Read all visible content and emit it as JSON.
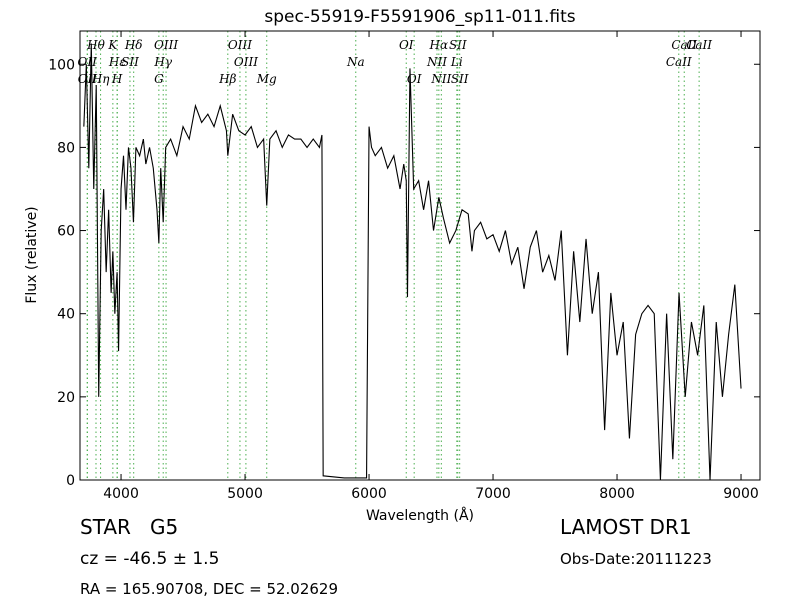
{
  "chart_data": {
    "type": "line",
    "title": "spec-55919-F5591906_sp11-011.fits",
    "xlabel": "Wavelength (Å)",
    "ylabel": "Flux (relative)",
    "xlim": [
      3669,
      9153
    ],
    "ylim": [
      0,
      108
    ],
    "xticks": [
      4000,
      5000,
      6000,
      7000,
      8000,
      9000
    ],
    "yticks": [
      0,
      20,
      40,
      60,
      80,
      100
    ],
    "color": "#000000",
    "line_color": "#4caf50",
    "x": [
      3700,
      3720,
      3740,
      3760,
      3780,
      3800,
      3820,
      3840,
      3860,
      3880,
      3900,
      3920,
      3934,
      3950,
      3968,
      3980,
      4000,
      4020,
      4040,
      4060,
      4080,
      4100,
      4120,
      4150,
      4180,
      4200,
      4230,
      4260,
      4290,
      4305,
      4320,
      4340,
      4360,
      4400,
      4450,
      4500,
      4550,
      4600,
      4650,
      4700,
      4750,
      4800,
      4850,
      4861,
      4900,
      4950,
      5000,
      5050,
      5100,
      5150,
      5175,
      5200,
      5250,
      5300,
      5350,
      5400,
      5450,
      5500,
      5550,
      5600,
      5620,
      5630,
      5800,
      5980,
      6000,
      6020,
      6050,
      6100,
      6150,
      6200,
      6250,
      6280,
      6300,
      6310,
      6330,
      6360,
      6400,
      6440,
      6480,
      6520,
      6563,
      6600,
      6650,
      6700,
      6750,
      6800,
      6830,
      6850,
      6900,
      6950,
      7000,
      7050,
      7100,
      7150,
      7200,
      7250,
      7300,
      7350,
      7400,
      7450,
      7500,
      7550,
      7600,
      7650,
      7700,
      7750,
      7800,
      7850,
      7900,
      7950,
      8000,
      8050,
      8100,
      8150,
      8200,
      8250,
      8300,
      8350,
      8400,
      8450,
      8500,
      8550,
      8600,
      8650,
      8700,
      8750,
      8800,
      8850,
      8900,
      8950,
      9000
    ],
    "values": [
      85,
      100,
      75,
      105,
      70,
      95,
      20,
      60,
      70,
      50,
      65,
      45,
      55,
      40,
      50,
      31,
      70,
      78,
      65,
      80,
      75,
      62,
      80,
      78,
      82,
      76,
      80,
      75,
      65,
      57,
      75,
      62,
      80,
      82,
      78,
      85,
      82,
      90,
      86,
      88,
      85,
      90,
      84,
      78,
      88,
      84,
      83,
      85,
      80,
      82,
      66,
      82,
      84,
      80,
      83,
      82,
      82,
      80,
      82,
      80,
      83,
      1,
      0.5,
      0.5,
      85,
      80,
      78,
      80,
      75,
      78,
      70,
      76,
      72,
      44,
      99,
      70,
      72,
      65,
      72,
      60,
      68,
      63,
      57,
      60,
      65,
      64,
      55,
      60,
      62,
      58,
      59,
      55,
      60,
      52,
      56,
      46,
      56,
      60,
      50,
      54,
      48,
      60,
      30,
      55,
      38,
      58,
      40,
      50,
      12,
      45,
      30,
      38,
      10,
      35,
      40,
      42,
      40,
      0,
      40,
      5,
      45,
      20,
      38,
      30,
      42,
      0,
      38,
      20,
      35,
      47,
      22
    ],
    "lines": [
      {
        "label": "Hθ",
        "x": 3798
      },
      {
        "label": "OII",
        "x": 3727
      },
      {
        "label": "OII",
        "x": 3729
      },
      {
        "label": "K",
        "x": 3934
      },
      {
        "label": "Hε",
        "x": 3970
      },
      {
        "label": "Hη",
        "x": 3835
      },
      {
        "label": "Hδ",
        "x": 4102
      },
      {
        "label": "SII",
        "x": 4072
      },
      {
        "label": "H",
        "x": 3968
      },
      {
        "label": "OIII",
        "x": 4363
      },
      {
        "label": "Hγ",
        "x": 4340
      },
      {
        "label": "G",
        "x": 4305
      },
      {
        "label": "OIII",
        "x": 4959
      },
      {
        "label": "OIII",
        "x": 5007
      },
      {
        "label": "Hβ",
        "x": 4861
      },
      {
        "label": "OI",
        "x": 6300
      },
      {
        "label": "Na",
        "x": 5893
      },
      {
        "label": "Mg",
        "x": 5175
      },
      {
        "label": "Hα",
        "x": 6563
      },
      {
        "label": "NII",
        "x": 6548
      },
      {
        "label": "OI",
        "x": 6364
      },
      {
        "label": "SII",
        "x": 6716
      },
      {
        "label": "Li",
        "x": 6708
      },
      {
        "label": "NII",
        "x": 6583
      },
      {
        "label": "CaII",
        "x": 8542
      },
      {
        "label": "CaII",
        "x": 8498
      },
      {
        "label": "SII",
        "x": 6731
      },
      {
        "label": "CaII",
        "x": 8662
      }
    ],
    "info": {
      "class": "STAR   G5",
      "cz": "cz = -46.5 ± 1.5",
      "coords": "RA = 165.90708, DEC = 52.02629",
      "survey": "LAMOST DR1",
      "date": "Obs-Date:20111223"
    }
  }
}
